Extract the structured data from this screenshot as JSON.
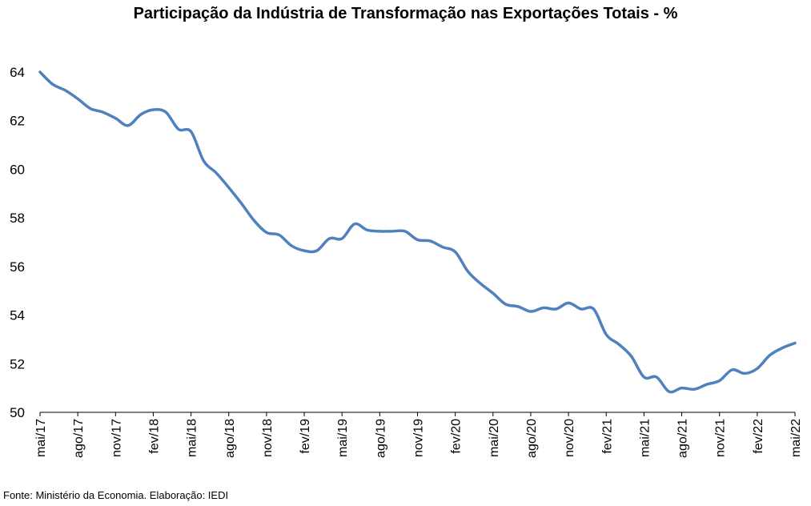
{
  "chart_data": {
    "type": "line",
    "title": "Participação da Indústria de Transformação nas Exportações Totais - %",
    "source": "Fonte: Ministério da Economia. Elaboração: IEDI",
    "xlabel": "",
    "ylabel": "",
    "ylim": [
      50,
      64
    ],
    "yticks": [
      50,
      52,
      54,
      56,
      58,
      60,
      62,
      64
    ],
    "grid": false,
    "legend": "none",
    "line_color": "#4f81bd",
    "x_tick_labels": [
      "mai/17",
      "ago/17",
      "nov/17",
      "fev/18",
      "mai/18",
      "ago/18",
      "nov/18",
      "fev/19",
      "mai/19",
      "ago/19",
      "nov/19",
      "fev/20",
      "mai/20",
      "ago/20",
      "nov/20",
      "fev/21",
      "mai/21",
      "ago/21",
      "nov/21",
      "fev/22",
      "mai/22"
    ],
    "x": [
      "mai/17",
      "jun/17",
      "jul/17",
      "ago/17",
      "set/17",
      "out/17",
      "nov/17",
      "dez/17",
      "jan/18",
      "fev/18",
      "mar/18",
      "abr/18",
      "mai/18",
      "jun/18",
      "jul/18",
      "ago/18",
      "set/18",
      "out/18",
      "nov/18",
      "dez/18",
      "jan/19",
      "fev/19",
      "mar/19",
      "abr/19",
      "mai/19",
      "jun/19",
      "jul/19",
      "ago/19",
      "set/19",
      "out/19",
      "nov/19",
      "dez/19",
      "jan/20",
      "fev/20",
      "mar/20",
      "abr/20",
      "mai/20",
      "jun/20",
      "jul/20",
      "ago/20",
      "set/20",
      "out/20",
      "nov/20",
      "dez/20",
      "jan/21",
      "fev/21",
      "mar/21",
      "abr/21",
      "mai/21",
      "jun/21",
      "jul/21",
      "ago/21",
      "set/21",
      "out/21",
      "nov/21",
      "dez/21",
      "jan/22",
      "fev/22",
      "mar/22",
      "abr/22",
      "mai/22"
    ],
    "series": [
      {
        "values": [
          64.0,
          63.5,
          63.25,
          62.9,
          62.5,
          62.35,
          62.1,
          61.8,
          62.25,
          62.45,
          62.35,
          61.65,
          61.55,
          60.35,
          59.85,
          59.25,
          58.6,
          57.9,
          57.4,
          57.3,
          56.85,
          56.65,
          56.65,
          57.15,
          57.15,
          57.75,
          57.5,
          57.45,
          57.45,
          57.45,
          57.1,
          57.05,
          56.8,
          56.6,
          55.8,
          55.3,
          54.9,
          54.45,
          54.35,
          54.15,
          54.3,
          54.25,
          54.5,
          54.25,
          54.25,
          53.2,
          52.8,
          52.3,
          51.45,
          51.45,
          50.85,
          51.0,
          50.95,
          51.15,
          51.3,
          51.75,
          51.6,
          51.8,
          52.35,
          52.65,
          52.85
        ]
      }
    ]
  }
}
